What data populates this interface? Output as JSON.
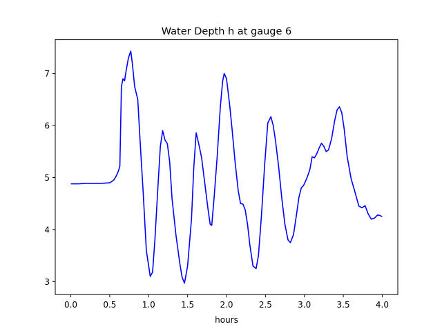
{
  "chart_data": {
    "type": "line",
    "title": "Water Depth h at gauge 6",
    "xlabel": "hours",
    "ylabel": "",
    "xlim": [
      -0.2,
      4.2
    ],
    "ylim": [
      2.75,
      7.65
    ],
    "xticks": [
      0.0,
      0.5,
      1.0,
      1.5,
      2.0,
      2.5,
      3.0,
      3.5,
      4.0
    ],
    "xtick_labels": [
      "0.0",
      "0.5",
      "1.0",
      "1.5",
      "2.0",
      "2.5",
      "3.0",
      "3.5",
      "4.0"
    ],
    "yticks": [
      3,
      4,
      5,
      6,
      7
    ],
    "ytick_labels": [
      "3",
      "4",
      "5",
      "6",
      "7"
    ],
    "grid": false,
    "series": [
      {
        "color": "#0000ff",
        "x": [
          0.0,
          0.1,
          0.2,
          0.3,
          0.4,
          0.5,
          0.55,
          0.58,
          0.61,
          0.63,
          0.65,
          0.67,
          0.69,
          0.71,
          0.74,
          0.77,
          0.79,
          0.82,
          0.86,
          0.89,
          0.93,
          0.97,
          1.02,
          1.05,
          1.08,
          1.12,
          1.15,
          1.18,
          1.21,
          1.24,
          1.27,
          1.3,
          1.35,
          1.4,
          1.43,
          1.46,
          1.5,
          1.55,
          1.58,
          1.61,
          1.65,
          1.68,
          1.72,
          1.76,
          1.79,
          1.81,
          1.84,
          1.88,
          1.92,
          1.95,
          1.97,
          2.0,
          2.04,
          2.07,
          2.11,
          2.15,
          2.18,
          2.21,
          2.24,
          2.27,
          2.3,
          2.34,
          2.38,
          2.41,
          2.45,
          2.49,
          2.53,
          2.57,
          2.6,
          2.63,
          2.67,
          2.71,
          2.75,
          2.79,
          2.82,
          2.86,
          2.9,
          2.93,
          2.96,
          2.99,
          3.03,
          3.07,
          3.1,
          3.13,
          3.16,
          3.19,
          3.22,
          3.25,
          3.28,
          3.31,
          3.35,
          3.39,
          3.42,
          3.45,
          3.48,
          3.51,
          3.55,
          3.6,
          3.65,
          3.7,
          3.74,
          3.78,
          3.82,
          3.86,
          3.9,
          3.94,
          3.97,
          4.0
        ],
        "y": [
          4.88,
          4.88,
          4.89,
          4.89,
          4.89,
          4.9,
          4.95,
          5.02,
          5.12,
          5.22,
          6.75,
          6.9,
          6.86,
          7.05,
          7.3,
          7.43,
          7.2,
          6.75,
          6.5,
          5.7,
          4.7,
          3.6,
          3.1,
          3.18,
          3.8,
          4.85,
          5.6,
          5.9,
          5.72,
          5.65,
          5.3,
          4.6,
          3.9,
          3.35,
          3.08,
          2.97,
          3.3,
          4.2,
          5.2,
          5.86,
          5.6,
          5.38,
          4.9,
          4.42,
          4.1,
          4.08,
          4.6,
          5.4,
          6.35,
          6.85,
          7.0,
          6.9,
          6.4,
          5.95,
          5.3,
          4.75,
          4.5,
          4.49,
          4.38,
          4.1,
          3.7,
          3.3,
          3.25,
          3.5,
          4.3,
          5.25,
          6.05,
          6.17,
          6.0,
          5.7,
          5.2,
          4.6,
          4.1,
          3.8,
          3.75,
          3.9,
          4.3,
          4.62,
          4.8,
          4.85,
          4.98,
          5.15,
          5.4,
          5.38,
          5.46,
          5.57,
          5.66,
          5.6,
          5.5,
          5.53,
          5.75,
          6.1,
          6.3,
          6.36,
          6.25,
          5.95,
          5.4,
          4.98,
          4.72,
          4.45,
          4.42,
          4.46,
          4.3,
          4.2,
          4.22,
          4.28,
          4.27,
          4.25
        ]
      }
    ]
  }
}
